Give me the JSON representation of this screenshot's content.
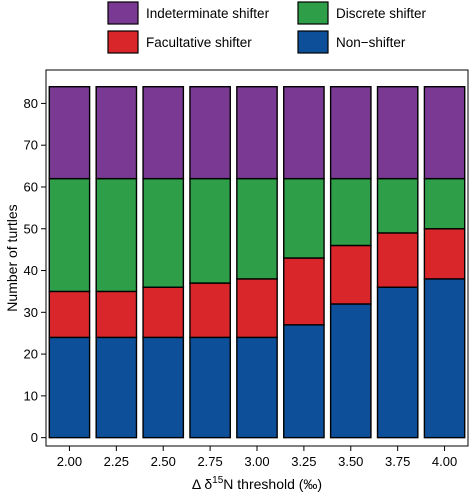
{
  "chart_data": {
    "type": "bar",
    "stacked": true,
    "categories": [
      "2.00",
      "2.25",
      "2.50",
      "2.75",
      "3.00",
      "3.25",
      "3.50",
      "3.75",
      "4.00"
    ],
    "series": [
      {
        "name": "Non−shifter",
        "color": "#0d4f98",
        "values": [
          24,
          24,
          24,
          24,
          24,
          27,
          32,
          36,
          38
        ]
      },
      {
        "name": "Facultative shifter",
        "color": "#d9262b",
        "values": [
          11,
          11,
          12,
          13,
          14,
          16,
          14,
          13,
          12
        ]
      },
      {
        "name": "Discrete shifter",
        "color": "#2e9e48",
        "values": [
          27,
          27,
          26,
          25,
          24,
          19,
          16,
          13,
          12
        ]
      },
      {
        "name": "Indeterminate shifter",
        "color": "#7a3a94",
        "values": [
          22,
          22,
          22,
          22,
          22,
          22,
          22,
          22,
          22
        ]
      }
    ],
    "legend_order": [
      "Indeterminate shifter",
      "Discrete shifter",
      "Facultative shifter",
      "Non−shifter"
    ],
    "xlabel_prefix": "Δ δ",
    "xlabel_sup": "15",
    "xlabel_suffix": "N threshold (‰)",
    "ylabel": "Number of turtles",
    "ylim": [
      -2,
      88
    ],
    "yticks": [
      0,
      10,
      20,
      30,
      40,
      50,
      60,
      70,
      80
    ],
    "grid": false,
    "legend_position": "top"
  }
}
